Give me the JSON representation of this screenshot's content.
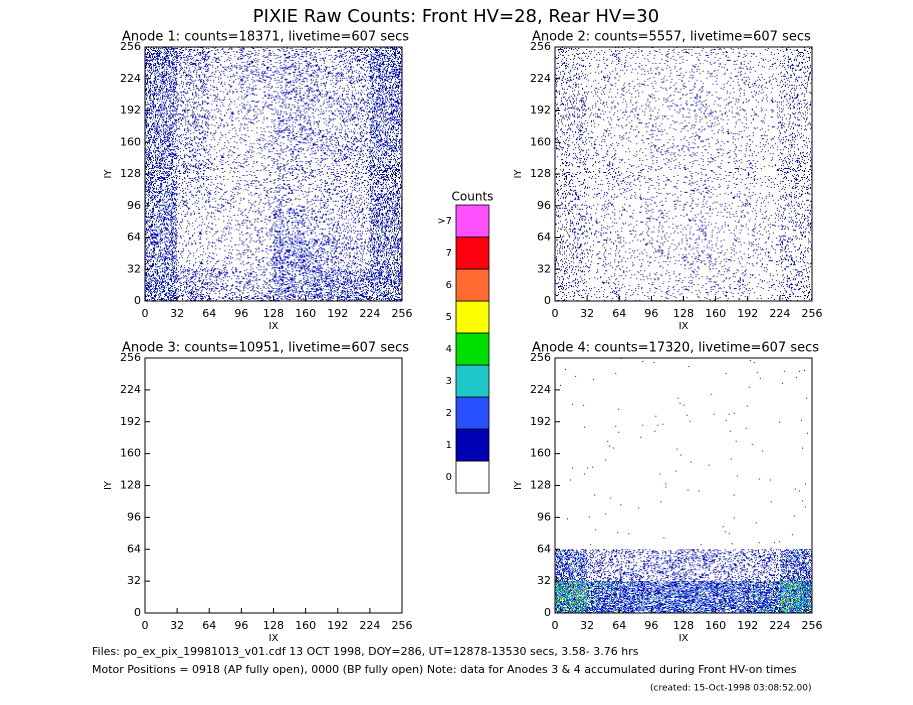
{
  "title": "PIXIE Raw Counts:  Front HV=28, Rear HV=30",
  "chart_data": [
    {
      "type": "image",
      "title": "Anode 1: counts=18371, livetime=607 secs",
      "xlabel": "IX",
      "ylabel": "IY",
      "xlim": [
        0,
        256
      ],
      "ylim": [
        0,
        256
      ],
      "xticks": [
        0,
        32,
        64,
        96,
        128,
        160,
        192,
        224,
        256
      ],
      "yticks": [
        0,
        32,
        64,
        96,
        128,
        160,
        192,
        224,
        256
      ],
      "density": [
        [
          0.6,
          0.3,
          0.2,
          0.2,
          0.4,
          0.5,
          0.5,
          0.6
        ],
        [
          0.5,
          0.1,
          0.1,
          0.1,
          0.5,
          0.3,
          0.2,
          0.5
        ],
        [
          0.5,
          0.1,
          0.1,
          0.1,
          0.3,
          0.15,
          0.15,
          0.5
        ],
        [
          0.5,
          0.15,
          0.1,
          0.1,
          0.15,
          0.15,
          0.15,
          0.45
        ],
        [
          0.5,
          0.2,
          0.1,
          0.1,
          0.15,
          0.2,
          0.2,
          0.45
        ],
        [
          0.5,
          0.2,
          0.1,
          0.1,
          0.2,
          0.2,
          0.2,
          0.45
        ],
        [
          0.5,
          0.2,
          0.1,
          0.15,
          0.2,
          0.2,
          0.2,
          0.5
        ],
        [
          0.6,
          0.3,
          0.15,
          0.2,
          0.2,
          0.2,
          0.25,
          0.6
        ]
      ]
    },
    {
      "type": "image",
      "title": "Anode 2: counts=5557, livetime=607 secs",
      "xlabel": "IX",
      "ylabel": "IY",
      "xlim": [
        0,
        256
      ],
      "ylim": [
        0,
        256
      ],
      "xticks": [
        0,
        32,
        64,
        96,
        128,
        160,
        192,
        224,
        256
      ],
      "yticks": [
        0,
        32,
        64,
        96,
        128,
        160,
        192,
        224,
        256
      ],
      "density": [
        [
          0.15,
          0.08,
          0.07,
          0.07,
          0.08,
          0.08,
          0.07,
          0.15
        ],
        [
          0.15,
          0.08,
          0.07,
          0.07,
          0.12,
          0.07,
          0.07,
          0.15
        ],
        [
          0.15,
          0.08,
          0.07,
          0.07,
          0.08,
          0.07,
          0.07,
          0.15
        ],
        [
          0.15,
          0.08,
          0.07,
          0.07,
          0.08,
          0.07,
          0.07,
          0.15
        ],
        [
          0.15,
          0.08,
          0.07,
          0.07,
          0.08,
          0.07,
          0.07,
          0.15
        ],
        [
          0.15,
          0.08,
          0.07,
          0.07,
          0.08,
          0.07,
          0.07,
          0.15
        ],
        [
          0.15,
          0.08,
          0.07,
          0.07,
          0.08,
          0.07,
          0.07,
          0.15
        ],
        [
          0.15,
          0.08,
          0.07,
          0.07,
          0.08,
          0.07,
          0.07,
          0.15
        ]
      ]
    },
    {
      "type": "image",
      "title": "Anode 3: counts=10951, livetime=607 secs",
      "xlabel": "IX",
      "ylabel": "IY",
      "xlim": [
        0,
        256
      ],
      "ylim": [
        0,
        256
      ],
      "xticks": [
        0,
        32,
        64,
        96,
        128,
        160,
        192,
        224,
        256
      ],
      "yticks": [
        0,
        32,
        64,
        96,
        128,
        160,
        192,
        224,
        256
      ],
      "density": [
        [
          0,
          0,
          0,
          0,
          0,
          0,
          0,
          0
        ],
        [
          0,
          0,
          0,
          0,
          0,
          0,
          0,
          0
        ],
        [
          0,
          0,
          0,
          0,
          0,
          0,
          0,
          0
        ],
        [
          0,
          0,
          0,
          0,
          0,
          0,
          0,
          0
        ],
        [
          0,
          0,
          0,
          0,
          0,
          0,
          0,
          0
        ],
        [
          0,
          0,
          0,
          0,
          0,
          0,
          0,
          0
        ],
        [
          0,
          0,
          0,
          0,
          0,
          0,
          0,
          0
        ],
        [
          0,
          0,
          0,
          0,
          0,
          0,
          0,
          0
        ]
      ]
    },
    {
      "type": "image",
      "title": "Anode 4: counts=17320, livetime=607 secs",
      "xlabel": "IX",
      "ylabel": "IY",
      "xlim": [
        0,
        256
      ],
      "ylim": [
        0,
        256
      ],
      "xticks": [
        0,
        32,
        64,
        96,
        128,
        160,
        192,
        224,
        256
      ],
      "yticks": [
        0,
        32,
        64,
        96,
        128,
        160,
        192,
        224,
        256
      ],
      "density": [
        [
          2.5,
          1.2,
          1.0,
          1.0,
          1.0,
          1.0,
          1.2,
          2.5
        ],
        [
          0.8,
          0.3,
          0.3,
          0.3,
          0.3,
          0.3,
          0.3,
          0.8
        ],
        [
          0.002,
          0.002,
          0.002,
          0.002,
          0.002,
          0.002,
          0.002,
          0.002
        ],
        [
          0.002,
          0.002,
          0.002,
          0.002,
          0.002,
          0.002,
          0.002,
          0.002
        ],
        [
          0.002,
          0.002,
          0.002,
          0.002,
          0.002,
          0.002,
          0.002,
          0.002
        ],
        [
          0.002,
          0.002,
          0.002,
          0.002,
          0.002,
          0.002,
          0.002,
          0.002
        ],
        [
          0.002,
          0.002,
          0.002,
          0.002,
          0.002,
          0.002,
          0.002,
          0.002
        ],
        [
          0.002,
          0.002,
          0.002,
          0.002,
          0.002,
          0.002,
          0.002,
          0.002
        ]
      ]
    }
  ],
  "colorbar": {
    "title": "Counts",
    "levels": [
      {
        "label": "0",
        "color": "#ffffff"
      },
      {
        "label": "1",
        "color": "#0000b4"
      },
      {
        "label": "2",
        "color": "#2850ff"
      },
      {
        "label": "3",
        "color": "#1ec8c8"
      },
      {
        "label": "4",
        "color": "#00e000"
      },
      {
        "label": "5",
        "color": "#ffff00"
      },
      {
        "label": "6",
        "color": "#ff6a30"
      },
      {
        "label": "7",
        "color": "#ff0010"
      },
      {
        "label": ">7",
        "color": "#ff50ff"
      }
    ]
  },
  "footer": [
    "Files: po_ex_pix_19981013_v01.cdf    13 OCT 1998, DOY=286, UT=12878-13530 secs,  3.58- 3.76 hrs",
    "Motor Positions = 0918 (AP fully open), 0000 (BP fully open)    Note: data for Anodes 3 & 4 accumulated during Front HV-on times",
    "(created: 15-Oct-1998 03:08:52.00)"
  ]
}
